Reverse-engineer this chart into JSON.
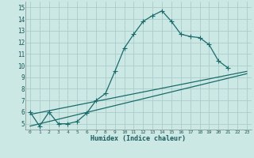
{
  "xlabel": "Humidex (Indice chaleur)",
  "background_color": "#cce8e4",
  "grid_color": "#aaccca",
  "line_color": "#1a6b6b",
  "xlim": [
    -0.5,
    23.5
  ],
  "ylim": [
    4.5,
    15.5
  ],
  "xticks": [
    0,
    1,
    2,
    3,
    4,
    5,
    6,
    7,
    8,
    9,
    10,
    11,
    12,
    13,
    14,
    15,
    16,
    17,
    18,
    19,
    20,
    21,
    22,
    23
  ],
  "yticks": [
    5,
    6,
    7,
    8,
    9,
    10,
    11,
    12,
    13,
    14,
    15
  ],
  "line1_x": [
    0,
    1,
    2,
    3,
    4,
    5,
    6,
    7,
    8,
    9,
    10,
    11,
    12,
    13,
    14,
    15,
    16,
    17,
    18,
    19,
    20,
    21
  ],
  "line1_y": [
    6.0,
    4.8,
    6.0,
    5.0,
    5.0,
    5.2,
    5.9,
    7.0,
    7.6,
    9.5,
    11.5,
    12.7,
    13.8,
    14.3,
    14.7,
    13.8,
    12.7,
    12.5,
    12.4,
    11.8,
    10.4,
    9.8
  ],
  "line2_x": [
    0,
    23
  ],
  "line2_y": [
    5.8,
    9.5
  ],
  "line3_x": [
    0,
    23
  ],
  "line3_y": [
    4.8,
    9.3
  ],
  "markersize": 2.5,
  "linewidth": 0.9
}
